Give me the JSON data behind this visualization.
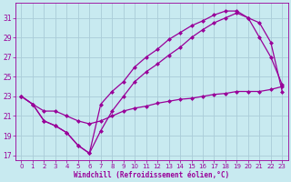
{
  "background_color": "#c8eaf0",
  "grid_color": "#aaccd8",
  "line_color": "#990099",
  "marker": "D",
  "markersize": 2.5,
  "linewidth": 0.9,
  "xlabel": "Windchill (Refroidissement éolien,°C)",
  "xlim": [
    -0.5,
    23.5
  ],
  "ylim": [
    16.5,
    32.5
  ],
  "xticks": [
    0,
    1,
    2,
    3,
    4,
    5,
    6,
    7,
    8,
    9,
    10,
    11,
    12,
    13,
    14,
    15,
    16,
    17,
    18,
    19,
    20,
    21,
    22,
    23
  ],
  "yticks": [
    17,
    19,
    21,
    23,
    25,
    27,
    29,
    31
  ],
  "line1_x": [
    0,
    1,
    2,
    3,
    4,
    5,
    6,
    7,
    8,
    9,
    10,
    11,
    12,
    13,
    14,
    15,
    16,
    17,
    18,
    19,
    20,
    21,
    22,
    23
  ],
  "line1_y": [
    23.0,
    22.2,
    20.5,
    20.0,
    19.3,
    18.0,
    17.2,
    22.2,
    23.5,
    24.5,
    26.0,
    27.0,
    27.8,
    28.8,
    29.5,
    30.2,
    30.7,
    31.3,
    31.7,
    31.7,
    31.0,
    29.0,
    27.0,
    24.2
  ],
  "line2_x": [
    0,
    1,
    2,
    3,
    4,
    5,
    6,
    7,
    8,
    9,
    10,
    11,
    12,
    13,
    14,
    15,
    16,
    17,
    18,
    19,
    20,
    21,
    22,
    23
  ],
  "line2_y": [
    23.0,
    22.2,
    20.5,
    20.0,
    19.3,
    18.0,
    17.2,
    19.5,
    21.5,
    23.0,
    24.5,
    25.5,
    26.3,
    27.2,
    28.0,
    29.0,
    29.8,
    30.5,
    31.0,
    31.5,
    31.0,
    30.5,
    28.5,
    23.5
  ],
  "line3_x": [
    0,
    1,
    2,
    3,
    4,
    5,
    6,
    7,
    8,
    9,
    10,
    11,
    12,
    13,
    14,
    15,
    16,
    17,
    18,
    19,
    20,
    21,
    22,
    23
  ],
  "line3_y": [
    23.0,
    22.2,
    21.5,
    21.5,
    21.0,
    20.5,
    20.2,
    20.5,
    21.0,
    21.5,
    21.8,
    22.0,
    22.3,
    22.5,
    22.7,
    22.8,
    23.0,
    23.2,
    23.3,
    23.5,
    23.5,
    23.5,
    23.7,
    24.0
  ]
}
